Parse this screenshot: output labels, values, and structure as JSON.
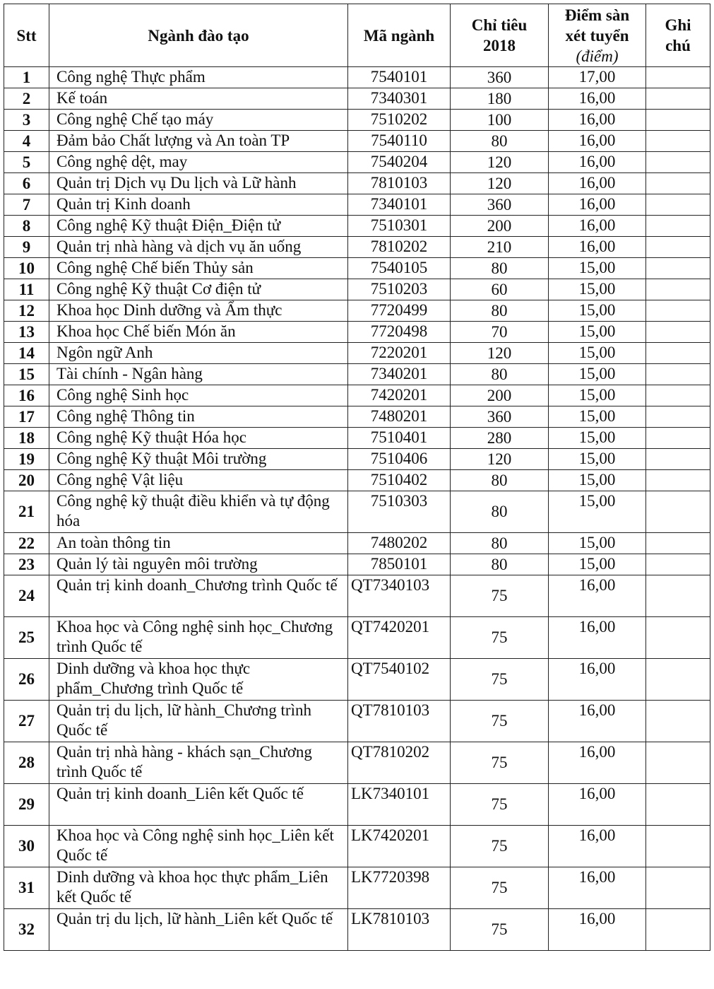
{
  "headers": {
    "stt": "Stt",
    "name": "Ngành đào tạo",
    "code": "Mã ngành",
    "quota_line1": "Chỉ tiêu",
    "quota_line2": "2018",
    "score_line1": "Điểm sàn",
    "score_line2": "xét tuyển",
    "score_unit": "(điểm)",
    "note_line1": "Ghi",
    "note_line2": "chú"
  },
  "rows": [
    {
      "stt": "1",
      "name": "Công nghệ Thực phẩm",
      "code": "7540101",
      "quota": "360",
      "score": "17,00",
      "note": ""
    },
    {
      "stt": "2",
      "name": "Kế toán",
      "code": "7340301",
      "quota": "180",
      "score": "16,00",
      "note": ""
    },
    {
      "stt": "3",
      "name": "Công nghệ Chế tạo máy",
      "code": "7510202",
      "quota": "100",
      "score": "16,00",
      "note": ""
    },
    {
      "stt": "4",
      "name": "Đảm bảo Chất lượng và An toàn TP",
      "code": "7540110",
      "quota": "80",
      "score": "16,00",
      "note": ""
    },
    {
      "stt": "5",
      "name": "Công nghệ dệt, may",
      "code": "7540204",
      "quota": "120",
      "score": "16,00",
      "note": ""
    },
    {
      "stt": "6",
      "name": "Quản trị Dịch vụ Du lịch và Lữ hành",
      "code": "7810103",
      "quota": "120",
      "score": "16,00",
      "note": ""
    },
    {
      "stt": "7",
      "name": "Quản trị Kinh doanh",
      "code": "7340101",
      "quota": "360",
      "score": "16,00",
      "note": ""
    },
    {
      "stt": "8",
      "name": "Công nghệ Kỹ thuật Điện_Điện tử",
      "code": "7510301",
      "quota": "200",
      "score": "16,00",
      "note": ""
    },
    {
      "stt": "9",
      "name": "Quản trị nhà hàng và dịch vụ ăn uống",
      "code": "7810202",
      "quota": "210",
      "score": "16,00",
      "note": ""
    },
    {
      "stt": "10",
      "name": "Công nghệ Chế biến Thủy sản",
      "code": "7540105",
      "quota": "80",
      "score": "15,00",
      "note": ""
    },
    {
      "stt": "11",
      "name": "Công nghệ Kỹ thuật Cơ điện tử",
      "code": "7510203",
      "quota": "60",
      "score": "15,00",
      "note": ""
    },
    {
      "stt": "12",
      "name": "Khoa học Dinh dưỡng và Ẩm thực",
      "code": "7720499",
      "quota": "80",
      "score": "15,00",
      "note": ""
    },
    {
      "stt": "13",
      "name": "Khoa học Chế biến Món ăn",
      "code": "7720498",
      "quota": "70",
      "score": "15,00",
      "note": ""
    },
    {
      "stt": "14",
      "name": "Ngôn ngữ Anh",
      "code": "7220201",
      "quota": "120",
      "score": "15,00",
      "note": ""
    },
    {
      "stt": "15",
      "name": "Tài chính - Ngân hàng",
      "code": "7340201",
      "quota": "80",
      "score": "15,00",
      "note": ""
    },
    {
      "stt": "16",
      "name": "Công nghệ Sinh học",
      "code": "7420201",
      "quota": "200",
      "score": "15,00",
      "note": ""
    },
    {
      "stt": "17",
      "name": "Công nghệ Thông tin",
      "code": "7480201",
      "quota": "360",
      "score": "15,00",
      "note": ""
    },
    {
      "stt": "18",
      "name": "Công nghệ Kỹ thuật Hóa học",
      "code": "7510401",
      "quota": "280",
      "score": "15,00",
      "note": ""
    },
    {
      "stt": "19",
      "name": "Công nghệ Kỹ thuật Môi trường",
      "code": "7510406",
      "quota": "120",
      "score": "15,00",
      "note": ""
    },
    {
      "stt": "20",
      "name": "Công nghệ Vật liệu",
      "code": "7510402",
      "quota": "80",
      "score": "15,00",
      "note": ""
    },
    {
      "stt": "21",
      "name": "Công nghệ kỹ thuật điều khiển và tự động hóa",
      "code": "7510303",
      "quota": "80",
      "score": "15,00",
      "note": ""
    },
    {
      "stt": "22",
      "name": "An toàn thông tin",
      "code": "7480202",
      "quota": "80",
      "score": "15,00",
      "note": ""
    },
    {
      "stt": "23",
      "name": "Quản lý tài nguyên môi trường",
      "code": "7850101",
      "quota": "80",
      "score": "15,00",
      "note": ""
    },
    {
      "stt": "24",
      "name": "Quản trị kinh doanh_Chương trình Quốc tế",
      "code": "QT7340103",
      "quota": "75",
      "score": "16,00",
      "note": ""
    },
    {
      "stt": "25",
      "name": "Khoa học và Công nghệ sinh học_Chương trình Quốc tế",
      "code": "QT7420201",
      "quota": "75",
      "score": "16,00",
      "note": ""
    },
    {
      "stt": "26",
      "name": "Dinh dưỡng và khoa học thực phẩm_Chương trình Quốc tế",
      "code": "QT7540102",
      "quota": "75",
      "score": "16,00",
      "note": ""
    },
    {
      "stt": "27",
      "name": "Quản trị du lịch, lữ hành_Chương trình Quốc tế",
      "code": "QT7810103",
      "quota": "75",
      "score": "16,00",
      "note": ""
    },
    {
      "stt": "28",
      "name": "Quản trị nhà hàng - khách sạn_Chương trình Quốc tế",
      "code": "QT7810202",
      "quota": "75",
      "score": "16,00",
      "note": ""
    },
    {
      "stt": "29",
      "name": "Quản trị kinh doanh_Liên kết Quốc tế",
      "code": "LK7340101",
      "quota": "75",
      "score": "16,00",
      "note": ""
    },
    {
      "stt": "30",
      "name": "Khoa học và Công nghệ sinh học_Liên kết Quốc tế",
      "code": "LK7420201",
      "quota": "75",
      "score": "16,00",
      "note": ""
    },
    {
      "stt": "31",
      "name": "Dinh dưỡng và khoa học thực phẩm_Liên kết Quốc tế",
      "code": "LK7720398",
      "quota": "75",
      "score": "16,00",
      "note": ""
    },
    {
      "stt": "32",
      "name": "Quản trị du lịch, lữ hành_Liên kết Quốc tế",
      "code": "LK7810103",
      "quota": "75",
      "score": "16,00",
      "note": ""
    }
  ]
}
